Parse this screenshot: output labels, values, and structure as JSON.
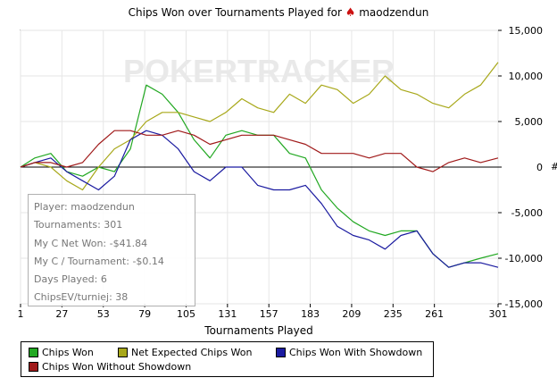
{
  "title": {
    "text": "Chips Won over Tournaments Played for",
    "player": "maodzendun",
    "icon": "spade-icon"
  },
  "watermark": "POKERTRACKER",
  "right_edge_glyph": "#",
  "info_box": {
    "lines": [
      "Player: maodzendun",
      "Tournaments: 301",
      "My C Net Won: -$41.84",
      "My C / Tournament: -$0.14",
      "Days Played: 6",
      "ChipsEV/turniej: 38"
    ]
  },
  "legend": {
    "items": [
      {
        "label": "Chips Won",
        "color": "#22a822"
      },
      {
        "label": "Net Expected Chips Won",
        "color": "#a8a81a"
      },
      {
        "label": "Chips Won With Showdown",
        "color": "#1a1aa0"
      },
      {
        "label": "Chips Won Without Showdown",
        "color": "#a01a1a"
      }
    ]
  },
  "chart_data": {
    "type": "line",
    "title": "Chips Won over Tournaments Played for maodzendun",
    "xlabel": "Tournaments Played",
    "ylabel": "",
    "xlim": [
      1,
      301
    ],
    "ylim": [
      -15000,
      15000
    ],
    "x_ticks": [
      1,
      27,
      53,
      79,
      105,
      131,
      157,
      183,
      209,
      235,
      261,
      301
    ],
    "y_ticks": [
      15000,
      10000,
      5000,
      0,
      -5000,
      -10000,
      -15000
    ],
    "y_tick_labels": [
      "15,000",
      "10,000",
      "5,000",
      "0",
      "-5,000",
      "-10,000",
      "-15,000"
    ],
    "axis_side": "right",
    "grid": true,
    "legend_position": "bottom",
    "series": [
      {
        "name": "Chips Won",
        "color": "#22a822",
        "x": [
          1,
          10,
          20,
          30,
          40,
          50,
          60,
          70,
          80,
          90,
          100,
          110,
          120,
          130,
          140,
          150,
          160,
          170,
          180,
          190,
          200,
          210,
          220,
          230,
          240,
          250,
          260,
          270,
          280,
          290,
          301
        ],
        "y": [
          0,
          1000,
          1500,
          -500,
          -1000,
          0,
          -500,
          2000,
          9000,
          8000,
          6000,
          3000,
          1000,
          3500,
          4000,
          3500,
          3500,
          1500,
          1000,
          -2500,
          -4500,
          -6000,
          -7000,
          -7500,
          -7000,
          -7000,
          -9500,
          -11000,
          -10500,
          -10000,
          -9500
        ]
      },
      {
        "name": "Net Expected Chips Won",
        "color": "#a8a81a",
        "x": [
          1,
          10,
          20,
          30,
          40,
          50,
          60,
          70,
          80,
          90,
          100,
          110,
          120,
          130,
          140,
          150,
          160,
          170,
          180,
          190,
          200,
          210,
          220,
          230,
          240,
          250,
          260,
          270,
          280,
          290,
          301
        ],
        "y": [
          0,
          500,
          0,
          -1500,
          -2500,
          0,
          2000,
          3000,
          5000,
          6000,
          6000,
          5500,
          5000,
          6000,
          7500,
          6500,
          6000,
          8000,
          7000,
          9000,
          8500,
          7000,
          8000,
          10000,
          8500,
          8000,
          7000,
          6500,
          8000,
          9000,
          11500
        ]
      },
      {
        "name": "Chips Won With Showdown",
        "color": "#1a1aa0",
        "x": [
          1,
          10,
          20,
          30,
          40,
          50,
          60,
          70,
          80,
          90,
          100,
          110,
          120,
          130,
          140,
          150,
          160,
          170,
          180,
          190,
          200,
          210,
          220,
          230,
          240,
          250,
          260,
          270,
          280,
          290,
          301
        ],
        "y": [
          0,
          500,
          1000,
          -500,
          -1500,
          -2500,
          -1000,
          3000,
          4000,
          3500,
          2000,
          -500,
          -1500,
          0,
          0,
          -2000,
          -2500,
          -2500,
          -2000,
          -4000,
          -6500,
          -7500,
          -8000,
          -9000,
          -7500,
          -7000,
          -9500,
          -11000,
          -10500,
          -10500,
          -11000
        ]
      },
      {
        "name": "Chips Won Without Showdown",
        "color": "#a01a1a",
        "x": [
          1,
          10,
          20,
          30,
          40,
          50,
          60,
          70,
          80,
          90,
          100,
          110,
          120,
          130,
          140,
          150,
          160,
          170,
          180,
          190,
          200,
          210,
          220,
          230,
          240,
          250,
          260,
          270,
          280,
          290,
          301
        ],
        "y": [
          0,
          500,
          500,
          0,
          500,
          2500,
          4000,
          4000,
          3500,
          3500,
          4000,
          3500,
          2500,
          3000,
          3500,
          3500,
          3500,
          3000,
          2500,
          1500,
          1500,
          1500,
          1000,
          1500,
          1500,
          0,
          -500,
          500,
          1000,
          500,
          1000
        ]
      }
    ]
  }
}
